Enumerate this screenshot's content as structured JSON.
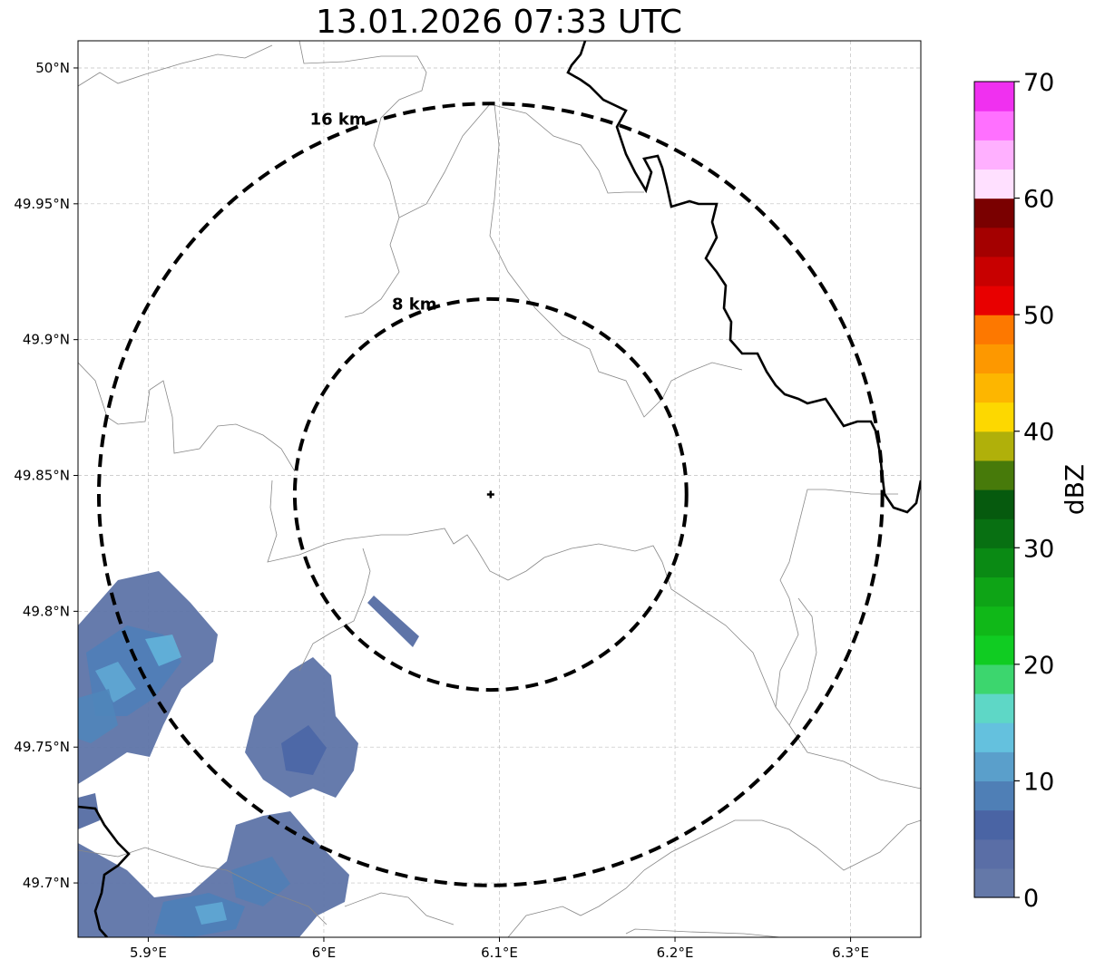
{
  "title": "13.01.2026 07:33 UTC",
  "map": {
    "lon_range": [
      5.86,
      6.34
    ],
    "lat_range": [
      49.68,
      50.01
    ],
    "center": {
      "lon": 6.095,
      "lat": 49.843
    },
    "rings": [
      {
        "label": "8 km",
        "radius_km": 8
      },
      {
        "label": "16 km",
        "radius_km": 16
      }
    ],
    "x_ticks": [
      {
        "value": 5.9,
        "label": "5.9°E"
      },
      {
        "value": 6.0,
        "label": "6°E"
      },
      {
        "value": 6.1,
        "label": "6.1°E"
      },
      {
        "value": 6.2,
        "label": "6.2°E"
      },
      {
        "value": 6.3,
        "label": "6.3°E"
      }
    ],
    "y_ticks": [
      {
        "value": 50.0,
        "label": "50°N"
      },
      {
        "value": 49.95,
        "label": "49.95°N"
      },
      {
        "value": 49.9,
        "label": "49.9°N"
      },
      {
        "value": 49.85,
        "label": "49.85°N"
      },
      {
        "value": 49.8,
        "label": "49.8°N"
      },
      {
        "value": 49.75,
        "label": "49.75°N"
      },
      {
        "value": 49.7,
        "label": "49.7°N"
      }
    ],
    "grid": true
  },
  "colorbar": {
    "label": "dBZ",
    "min": 0,
    "max": 70,
    "step": 2.5,
    "tick_values": [
      0,
      10,
      20,
      30,
      40,
      50,
      60,
      70
    ],
    "tick_labels": [
      "0",
      "10",
      "20",
      "30",
      "40",
      "50",
      "60",
      "70"
    ],
    "colors": [
      "#6478a8",
      "#5a6ea6",
      "#4a64a4",
      "#4f7fb6",
      "#5a9fcb",
      "#64c1de",
      "#5ed7c6",
      "#3cd66e",
      "#10cc22",
      "#10b818",
      "#0ea416",
      "#0a8a14",
      "#087012",
      "#065a0e",
      "#477a0a",
      "#b0b00a",
      "#fdd800",
      "#fdb600",
      "#fd9800",
      "#fd7800",
      "#e80000",
      "#c80000",
      "#a40000",
      "#7a0000",
      "#ffe0ff",
      "#ffb0ff",
      "#ff70ff",
      "#f030f0"
    ]
  }
}
